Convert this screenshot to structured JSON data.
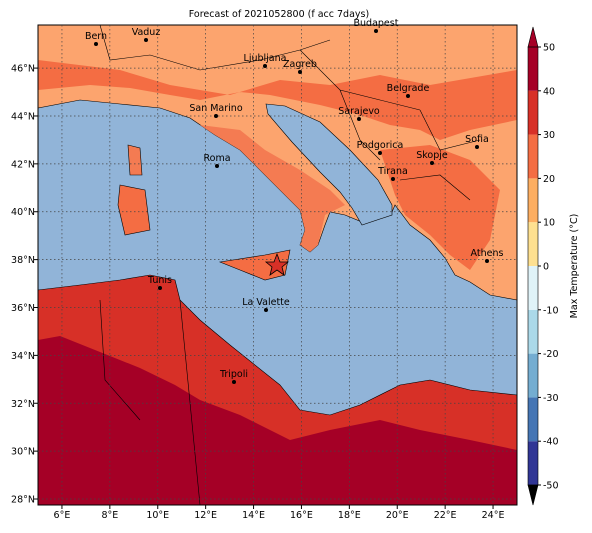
{
  "title": "Forecast of 2021052800 (f acc 7days)",
  "map": {
    "xlim": [
      5,
      25
    ],
    "ylim": [
      27.75,
      47.8
    ],
    "grid": true,
    "xticks": [
      {
        "value": 6,
        "label": "6°E"
      },
      {
        "value": 8,
        "label": "8°E"
      },
      {
        "value": 10,
        "label": "10°E"
      },
      {
        "value": 12,
        "label": "12°E"
      },
      {
        "value": 14,
        "label": "14°E"
      },
      {
        "value": 16,
        "label": "16°E"
      },
      {
        "value": 18,
        "label": "18°E"
      },
      {
        "value": 20,
        "label": "20°E"
      },
      {
        "value": 22,
        "label": "22°E"
      },
      {
        "value": 24,
        "label": "24°E"
      }
    ],
    "yticks": [
      {
        "value": 28,
        "label": "28°N"
      },
      {
        "value": 30,
        "label": "30°N"
      },
      {
        "value": 32,
        "label": "32°N"
      },
      {
        "value": 34,
        "label": "34°N"
      },
      {
        "value": 36,
        "label": "36°N"
      },
      {
        "value": 38,
        "label": "38°N"
      },
      {
        "value": 40,
        "label": "40°N"
      },
      {
        "value": 42,
        "label": "42°N"
      },
      {
        "value": 44,
        "label": "44°N"
      },
      {
        "value": 46,
        "label": "46°N"
      }
    ],
    "cities": [
      "Bern",
      "Vaduz",
      "Budapest",
      "Ljubljana",
      "Zagreb",
      "Belgrade",
      "San Marino",
      "Sarajevo",
      "Roma",
      "Podgorica",
      "Skopje",
      "Sofia",
      "Tirana",
      "Athens",
      "Tunis",
      "La Valette",
      "Tripoli"
    ]
  },
  "colorbar": {
    "label": "Max Temperature (°C)",
    "lim": [
      -50,
      50
    ],
    "ticks": [
      -50,
      -40,
      -30,
      -20,
      -10,
      0,
      10,
      20,
      30,
      40,
      50
    ],
    "colors": [
      "#313695",
      "#4575b4",
      "#74add1",
      "#abd9e9",
      "#e0f3f8",
      "#fee090",
      "#fdae61",
      "#f46d43",
      "#d73027",
      "#a50026"
    ]
  }
}
